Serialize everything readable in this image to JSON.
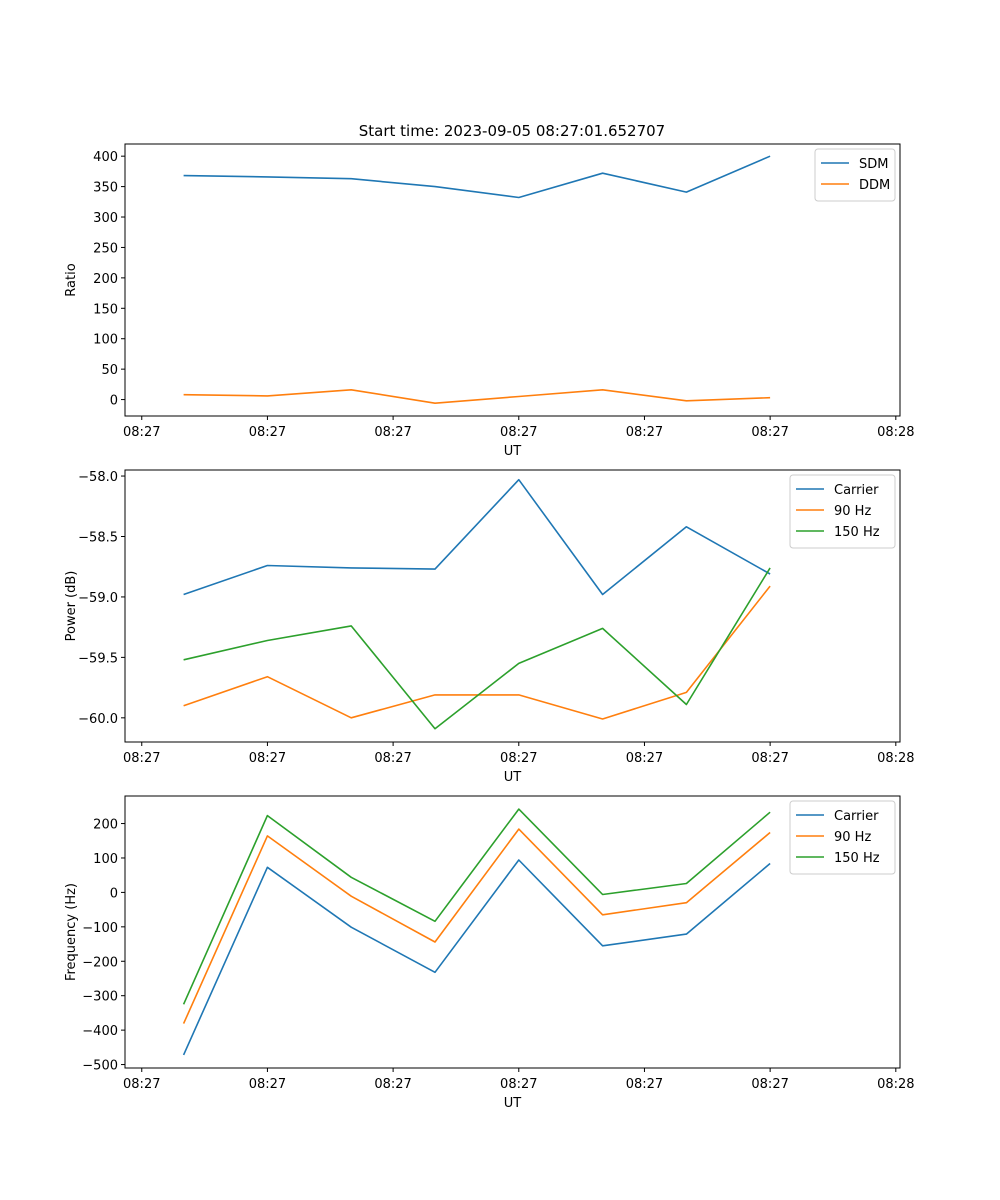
{
  "figure_title": "Start time: 2023-09-05 08:27:01.652707",
  "chart_data": [
    {
      "type": "line",
      "xlabel": "UT",
      "ylabel": "Ratio",
      "ylim": [
        -27,
        420
      ],
      "yticks": [
        0,
        50,
        100,
        150,
        200,
        250,
        300,
        350,
        400
      ],
      "ytick_labels": [
        "0",
        "50",
        "100",
        "150",
        "200",
        "250",
        "300",
        "350",
        "400"
      ],
      "xlim": [
        -0.7,
        8.55
      ],
      "xticks": [
        -0.5,
        1.0,
        2.5,
        4.0,
        5.5,
        7.0,
        8.5
      ],
      "xtick_labels": [
        "08:27",
        "08:27",
        "08:27",
        "08:27",
        "08:27",
        "08:27",
        "08:28"
      ],
      "x": [
        0,
        1,
        2,
        3,
        4,
        5,
        6,
        7
      ],
      "legend_position": "top-right",
      "series": [
        {
          "name": "SDM",
          "color": "#1f77b4",
          "values": [
            368,
            366,
            363,
            350,
            332,
            372,
            341,
            400
          ]
        },
        {
          "name": "DDM",
          "color": "#ff7f0e",
          "values": [
            8,
            6,
            16,
            -6,
            5,
            16,
            -2,
            3
          ]
        }
      ]
    },
    {
      "type": "line",
      "xlabel": "UT",
      "ylabel": "Power (dB)",
      "ylim": [
        -60.2,
        -57.95
      ],
      "yticks": [
        -58.0,
        -58.5,
        -59.0,
        -59.5,
        -60.0
      ],
      "ytick_labels": [
        "−58.0",
        "−58.5",
        "−59.0",
        "−59.5",
        "−60.0"
      ],
      "xlim": [
        -0.7,
        8.55
      ],
      "xticks": [
        -0.5,
        1.0,
        2.5,
        4.0,
        5.5,
        7.0,
        8.5
      ],
      "xtick_labels": [
        "08:27",
        "08:27",
        "08:27",
        "08:27",
        "08:27",
        "08:27",
        "08:28"
      ],
      "x": [
        0,
        1,
        2,
        3,
        4,
        5,
        6,
        7
      ],
      "legend_position": "top-right",
      "series": [
        {
          "name": "Carrier",
          "color": "#1f77b4",
          "values": [
            -58.98,
            -58.74,
            -58.76,
            -58.77,
            -58.03,
            -58.98,
            -58.42,
            -58.81
          ]
        },
        {
          "name": "90 Hz",
          "color": "#ff7f0e",
          "values": [
            -59.9,
            -59.66,
            -60.0,
            -59.81,
            -59.81,
            -60.01,
            -59.79,
            -58.91
          ]
        },
        {
          "name": "150 Hz",
          "color": "#2ca02c",
          "values": [
            -59.52,
            -59.36,
            -59.24,
            -60.09,
            -59.55,
            -59.26,
            -59.89,
            -58.76
          ]
        }
      ]
    },
    {
      "type": "line",
      "xlabel": "UT",
      "ylabel": "Frequency (Hz)",
      "ylim": [
        -510,
        280
      ],
      "yticks": [
        200,
        100,
        0,
        -100,
        -200,
        -300,
        -400,
        -500
      ],
      "ytick_labels": [
        "200",
        "100",
        "0",
        "−100",
        "−200",
        "−300",
        "−400",
        "−500"
      ],
      "xlim": [
        -0.7,
        8.55
      ],
      "xticks": [
        -0.5,
        1.0,
        2.5,
        4.0,
        5.5,
        7.0,
        8.5
      ],
      "xtick_labels": [
        "08:27",
        "08:27",
        "08:27",
        "08:27",
        "08:27",
        "08:27",
        "08:28"
      ],
      "x": [
        0,
        1,
        2,
        3,
        4,
        5,
        6,
        7
      ],
      "legend_position": "top-right",
      "series": [
        {
          "name": "Carrier",
          "color": "#1f77b4",
          "values": [
            -472,
            73,
            -101,
            -232,
            94,
            -155,
            -121,
            84
          ]
        },
        {
          "name": "90 Hz",
          "color": "#ff7f0e",
          "values": [
            -381,
            164,
            -11,
            -144,
            184,
            -65,
            -30,
            174
          ]
        },
        {
          "name": "150 Hz",
          "color": "#2ca02c",
          "values": [
            -325,
            223,
            44,
            -84,
            242,
            -6,
            26,
            233
          ]
        }
      ]
    }
  ]
}
